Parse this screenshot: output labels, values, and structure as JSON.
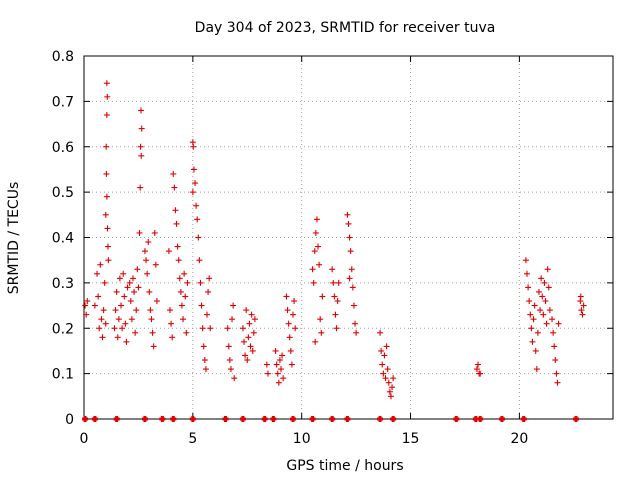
{
  "chart_data": {
    "type": "scatter",
    "title": "Day 304 of 2023, SRMTID for receiver tuva",
    "xlabel": "GPS time / hours",
    "ylabel": "SRMTID / TECUs",
    "xlim": [
      0,
      24.3
    ],
    "ylim": [
      0,
      0.8
    ],
    "xticks": [
      0,
      5,
      10,
      15,
      20
    ],
    "xtick_labels": [
      "0",
      "5",
      "10",
      "15",
      "20"
    ],
    "yticks": [
      0,
      0.1,
      0.2,
      0.3,
      0.4,
      0.5,
      0.6,
      0.7,
      0.8
    ],
    "ytick_labels": [
      "0",
      "0.1",
      "0.2",
      "0.3",
      "0.4",
      "0.5",
      "0.6",
      "0.7",
      "0.8"
    ],
    "grid": true,
    "marker": "+",
    "color": "#e00000",
    "series": [
      {
        "name": "SRMTID",
        "points": [
          [
            0.05,
            0.25
          ],
          [
            0.1,
            0.23
          ],
          [
            0.15,
            0.26
          ],
          [
            0.5,
            0.25
          ],
          [
            0.6,
            0.32
          ],
          [
            0.65,
            0.27
          ],
          [
            0.7,
            0.2
          ],
          [
            0.75,
            0.34
          ],
          [
            0.8,
            0.22
          ],
          [
            0.85,
            0.18
          ],
          [
            0.9,
            0.24
          ],
          [
            0.95,
            0.3
          ],
          [
            1.0,
            0.21
          ],
          [
            1.05,
            0.74
          ],
          [
            1.07,
            0.71
          ],
          [
            1.05,
            0.67
          ],
          [
            1.02,
            0.6
          ],
          [
            1.03,
            0.54
          ],
          [
            1.05,
            0.49
          ],
          [
            1.0,
            0.45
          ],
          [
            1.08,
            0.42
          ],
          [
            1.1,
            0.38
          ],
          [
            1.12,
            0.35
          ],
          [
            1.4,
            0.2
          ],
          [
            1.45,
            0.24
          ],
          [
            1.5,
            0.28
          ],
          [
            1.55,
            0.18
          ],
          [
            1.6,
            0.22
          ],
          [
            1.65,
            0.31
          ],
          [
            1.7,
            0.25
          ],
          [
            1.75,
            0.2
          ],
          [
            1.8,
            0.32
          ],
          [
            1.85,
            0.27
          ],
          [
            1.9,
            0.21
          ],
          [
            1.95,
            0.17
          ],
          [
            2.0,
            0.29
          ],
          [
            2.1,
            0.3
          ],
          [
            2.15,
            0.26
          ],
          [
            2.2,
            0.22
          ],
          [
            2.25,
            0.31
          ],
          [
            2.3,
            0.28
          ],
          [
            2.35,
            0.19
          ],
          [
            2.4,
            0.24
          ],
          [
            2.45,
            0.33
          ],
          [
            2.5,
            0.29
          ],
          [
            2.62,
            0.68
          ],
          [
            2.65,
            0.64
          ],
          [
            2.6,
            0.6
          ],
          [
            2.63,
            0.58
          ],
          [
            2.58,
            0.51
          ],
          [
            2.55,
            0.41
          ],
          [
            2.8,
            0.37
          ],
          [
            2.85,
            0.35
          ],
          [
            2.9,
            0.32
          ],
          [
            2.95,
            0.39
          ],
          [
            3.0,
            0.28
          ],
          [
            3.05,
            0.24
          ],
          [
            3.1,
            0.22
          ],
          [
            3.15,
            0.19
          ],
          [
            3.2,
            0.16
          ],
          [
            3.25,
            0.41
          ],
          [
            3.3,
            0.34
          ],
          [
            3.35,
            0.26
          ],
          [
            3.9,
            0.37
          ],
          [
            3.95,
            0.24
          ],
          [
            4.0,
            0.21
          ],
          [
            4.05,
            0.18
          ],
          [
            4.1,
            0.54
          ],
          [
            4.15,
            0.51
          ],
          [
            4.2,
            0.46
          ],
          [
            4.25,
            0.43
          ],
          [
            4.3,
            0.38
          ],
          [
            4.35,
            0.35
          ],
          [
            4.4,
            0.31
          ],
          [
            4.45,
            0.28
          ],
          [
            4.5,
            0.25
          ],
          [
            4.55,
            0.22
          ],
          [
            4.6,
            0.32
          ],
          [
            4.65,
            0.27
          ],
          [
            4.7,
            0.19
          ],
          [
            4.75,
            0.3
          ],
          [
            5.0,
            0.61
          ],
          [
            5.02,
            0.6
          ],
          [
            5.05,
            0.55
          ],
          [
            5.1,
            0.52
          ],
          [
            5.0,
            0.5
          ],
          [
            5.15,
            0.47
          ],
          [
            5.2,
            0.44
          ],
          [
            5.25,
            0.4
          ],
          [
            5.3,
            0.35
          ],
          [
            5.35,
            0.3
          ],
          [
            5.4,
            0.25
          ],
          [
            5.45,
            0.2
          ],
          [
            5.5,
            0.16
          ],
          [
            5.55,
            0.13
          ],
          [
            5.6,
            0.11
          ],
          [
            5.65,
            0.23
          ],
          [
            5.7,
            0.28
          ],
          [
            5.75,
            0.31
          ],
          [
            5.8,
            0.2
          ],
          [
            6.6,
            0.2
          ],
          [
            6.65,
            0.16
          ],
          [
            6.7,
            0.13
          ],
          [
            6.75,
            0.11
          ],
          [
            6.8,
            0.22
          ],
          [
            6.85,
            0.25
          ],
          [
            6.9,
            0.09
          ],
          [
            7.3,
            0.2
          ],
          [
            7.35,
            0.17
          ],
          [
            7.4,
            0.14
          ],
          [
            7.45,
            0.24
          ],
          [
            7.5,
            0.13
          ],
          [
            7.55,
            0.18
          ],
          [
            7.6,
            0.21
          ],
          [
            7.65,
            0.16
          ],
          [
            7.7,
            0.23
          ],
          [
            7.75,
            0.15
          ],
          [
            7.8,
            0.19
          ],
          [
            7.85,
            0.22
          ],
          [
            8.4,
            0.12
          ],
          [
            8.45,
            0.1
          ],
          [
            8.8,
            0.15
          ],
          [
            8.85,
            0.12
          ],
          [
            8.9,
            0.1
          ],
          [
            8.95,
            0.08
          ],
          [
            9.0,
            0.13
          ],
          [
            9.05,
            0.11
          ],
          [
            9.1,
            0.14
          ],
          [
            9.15,
            0.09
          ],
          [
            9.3,
            0.27
          ],
          [
            9.35,
            0.24
          ],
          [
            9.4,
            0.21
          ],
          [
            9.45,
            0.18
          ],
          [
            9.5,
            0.15
          ],
          [
            9.55,
            0.12
          ],
          [
            9.6,
            0.23
          ],
          [
            9.65,
            0.26
          ],
          [
            9.7,
            0.2
          ],
          [
            10.5,
            0.33
          ],
          [
            10.55,
            0.3
          ],
          [
            10.6,
            0.37
          ],
          [
            10.65,
            0.41
          ],
          [
            10.7,
            0.44
          ],
          [
            10.75,
            0.38
          ],
          [
            10.8,
            0.34
          ],
          [
            10.85,
            0.22
          ],
          [
            10.9,
            0.19
          ],
          [
            10.95,
            0.27
          ],
          [
            10.62,
            0.17
          ],
          [
            11.4,
            0.33
          ],
          [
            11.45,
            0.3
          ],
          [
            11.5,
            0.27
          ],
          [
            11.55,
            0.23
          ],
          [
            11.6,
            0.2
          ],
          [
            11.65,
            0.26
          ],
          [
            11.7,
            0.3
          ],
          [
            12.1,
            0.45
          ],
          [
            12.15,
            0.43
          ],
          [
            12.2,
            0.4
          ],
          [
            12.25,
            0.37
          ],
          [
            12.3,
            0.33
          ],
          [
            12.35,
            0.29
          ],
          [
            12.4,
            0.25
          ],
          [
            12.45,
            0.21
          ],
          [
            12.5,
            0.19
          ],
          [
            12.2,
            0.31
          ],
          [
            13.6,
            0.19
          ],
          [
            13.65,
            0.15
          ],
          [
            13.7,
            0.12
          ],
          [
            13.75,
            0.1
          ],
          [
            13.8,
            0.14
          ],
          [
            13.85,
            0.09
          ],
          [
            13.9,
            0.16
          ],
          [
            13.95,
            0.11
          ],
          [
            14.0,
            0.08
          ],
          [
            14.05,
            0.06
          ],
          [
            14.1,
            0.05
          ],
          [
            14.15,
            0.07
          ],
          [
            14.2,
            0.09
          ],
          [
            18.1,
            0.12
          ],
          [
            18.15,
            0.1
          ],
          [
            18.05,
            0.11
          ],
          [
            18.2,
            0.1
          ],
          [
            20.3,
            0.35
          ],
          [
            20.35,
            0.32
          ],
          [
            20.4,
            0.29
          ],
          [
            20.45,
            0.26
          ],
          [
            20.5,
            0.23
          ],
          [
            20.55,
            0.2
          ],
          [
            20.6,
            0.17
          ],
          [
            20.65,
            0.22
          ],
          [
            20.7,
            0.25
          ],
          [
            20.75,
            0.15
          ],
          [
            20.8,
            0.11
          ],
          [
            20.85,
            0.19
          ],
          [
            20.9,
            0.28
          ],
          [
            20.95,
            0.24
          ],
          [
            21.0,
            0.31
          ],
          [
            21.05,
            0.27
          ],
          [
            21.1,
            0.23
          ],
          [
            21.15,
            0.3
          ],
          [
            21.2,
            0.26
          ],
          [
            21.25,
            0.21
          ],
          [
            21.3,
            0.33
          ],
          [
            21.35,
            0.29
          ],
          [
            21.4,
            0.24
          ],
          [
            21.5,
            0.22
          ],
          [
            21.55,
            0.19
          ],
          [
            21.6,
            0.16
          ],
          [
            21.65,
            0.13
          ],
          [
            21.7,
            0.1
          ],
          [
            21.75,
            0.08
          ],
          [
            21.8,
            0.21
          ],
          [
            22.8,
            0.26
          ],
          [
            22.85,
            0.24
          ],
          [
            22.9,
            0.23
          ],
          [
            22.95,
            0.25
          ],
          [
            22.82,
            0.27
          ]
        ]
      }
    ],
    "baseline_markers": [
      0.05,
      0.5,
      1.5,
      2.8,
      3.6,
      4.1,
      5.0,
      6.5,
      7.3,
      8.3,
      8.7,
      9.6,
      10.5,
      11.4,
      12.1,
      13.6,
      14.2,
      17.1,
      18.0,
      18.2,
      19.2,
      20.2,
      22.6
    ]
  }
}
